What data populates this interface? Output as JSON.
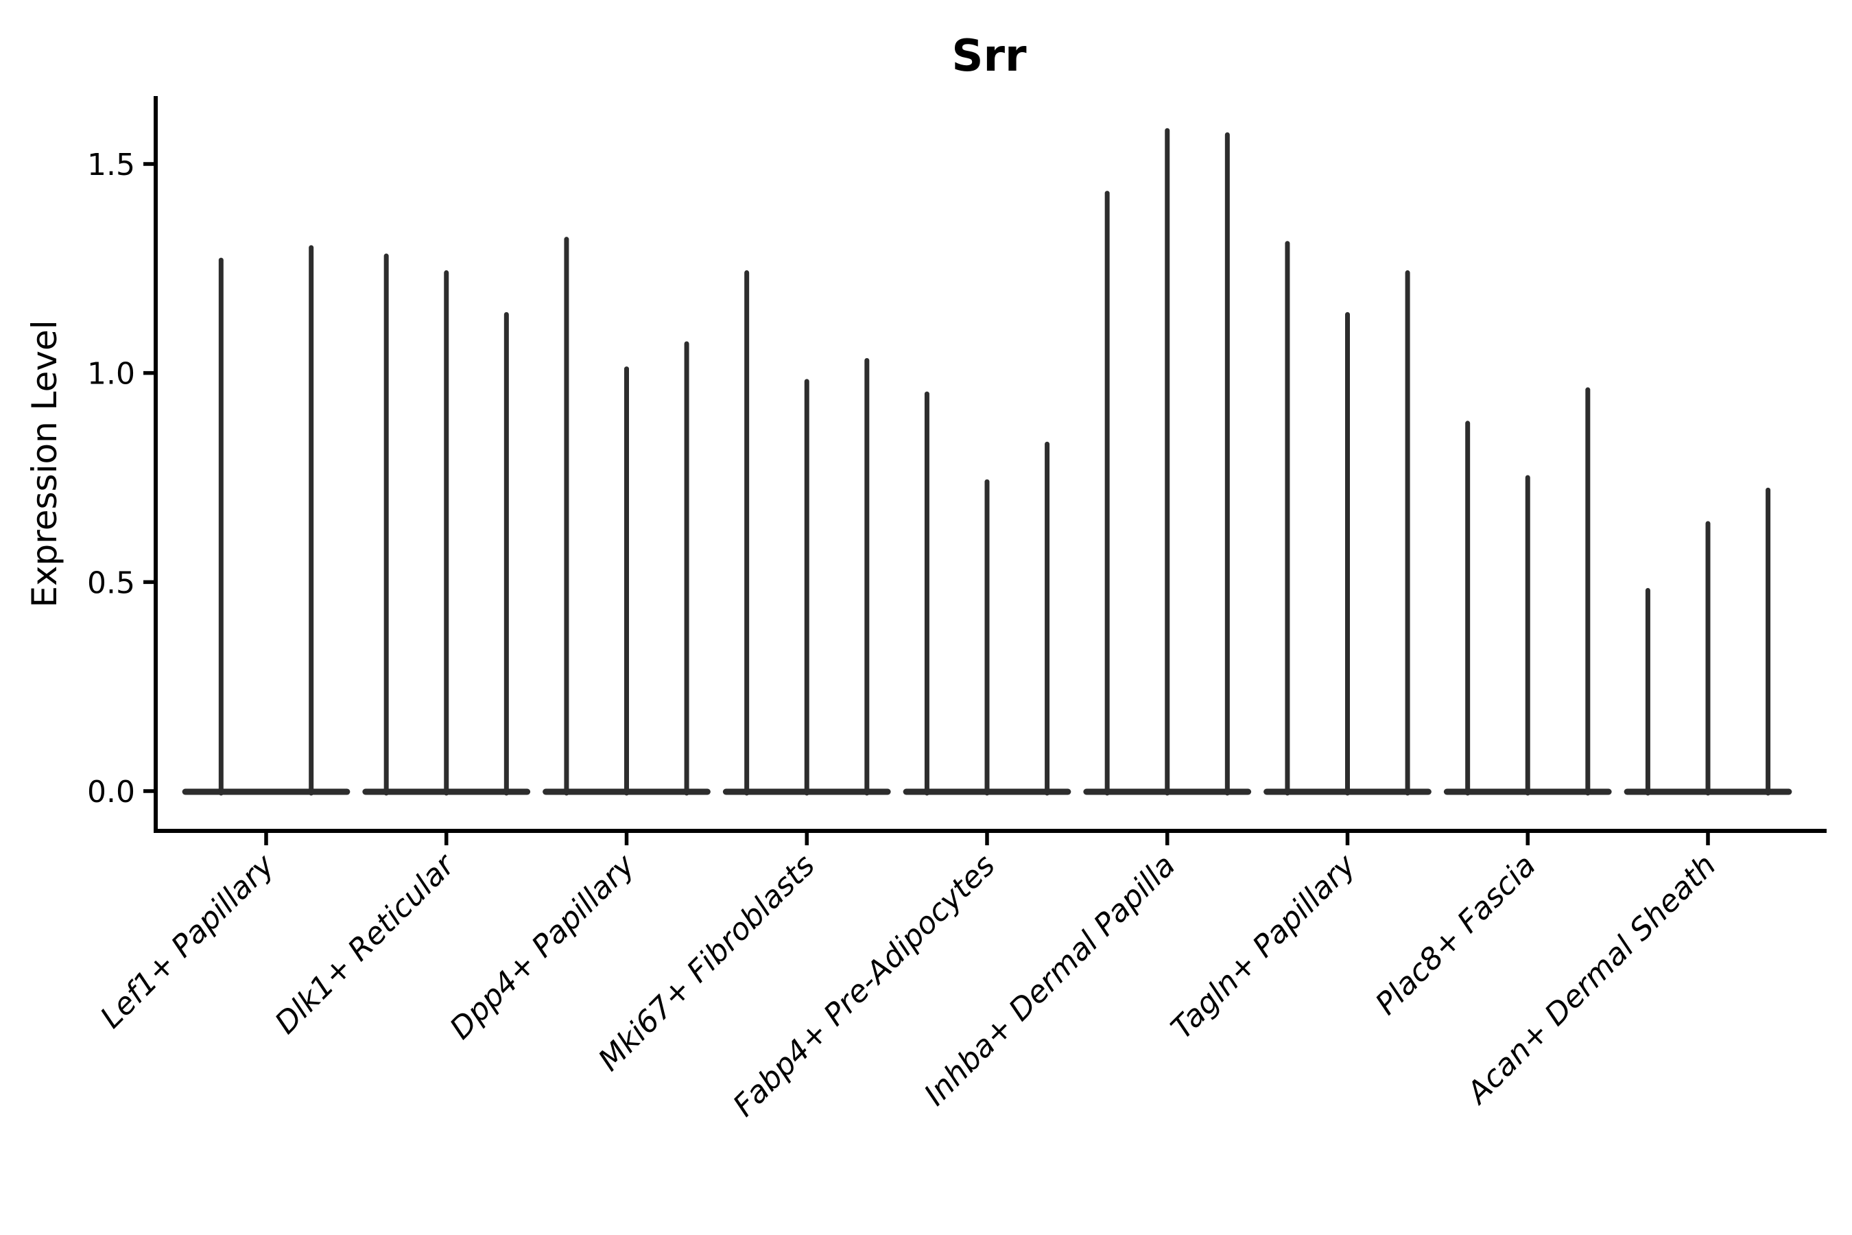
{
  "chart_data": {
    "type": "violin",
    "title": "Srr",
    "ylabel": "Expression Level",
    "xlabel": "",
    "grid": false,
    "legend": "none",
    "ylim": [
      -0.09,
      1.66
    ],
    "y_ticks": [
      {
        "value": 0.0,
        "label": "0.0"
      },
      {
        "value": 0.5,
        "label": "0.5"
      },
      {
        "value": 1.0,
        "label": "1.0"
      },
      {
        "value": 1.5,
        "label": "1.5"
      }
    ],
    "x_tick_rotation_deg": 45,
    "groups": [
      {
        "label": "Lef1+ Papillary",
        "violin_peaks": [
          1.27,
          1.3
        ]
      },
      {
        "label": "Dlk1+ Reticular",
        "violin_peaks": [
          1.28,
          1.24,
          1.14
        ]
      },
      {
        "label": "Dpp4+ Papillary",
        "violin_peaks": [
          1.32,
          1.01,
          1.07
        ]
      },
      {
        "label": "Mki67+ Fibroblasts",
        "violin_peaks": [
          1.24,
          0.98,
          1.03
        ]
      },
      {
        "label": "Fabp4+ Pre-Adipocytes",
        "violin_peaks": [
          0.95,
          0.74,
          0.83
        ]
      },
      {
        "label": "Inhba+ Dermal Papilla",
        "violin_peaks": [
          1.43,
          1.58,
          1.57
        ]
      },
      {
        "label": "Tagln+ Papillary",
        "violin_peaks": [
          1.31,
          1.14,
          1.24
        ]
      },
      {
        "label": "Plac8+ Fascia",
        "violin_peaks": [
          0.88,
          0.75,
          0.96
        ]
      },
      {
        "label": "Acan+ Dermal Sheath",
        "violin_peaks": [
          0.48,
          0.64,
          0.72
        ]
      }
    ],
    "colors": {
      "violin": "#2d2d2d",
      "axis": "#000000",
      "text": "#000000",
      "background": "#ffffff"
    }
  }
}
